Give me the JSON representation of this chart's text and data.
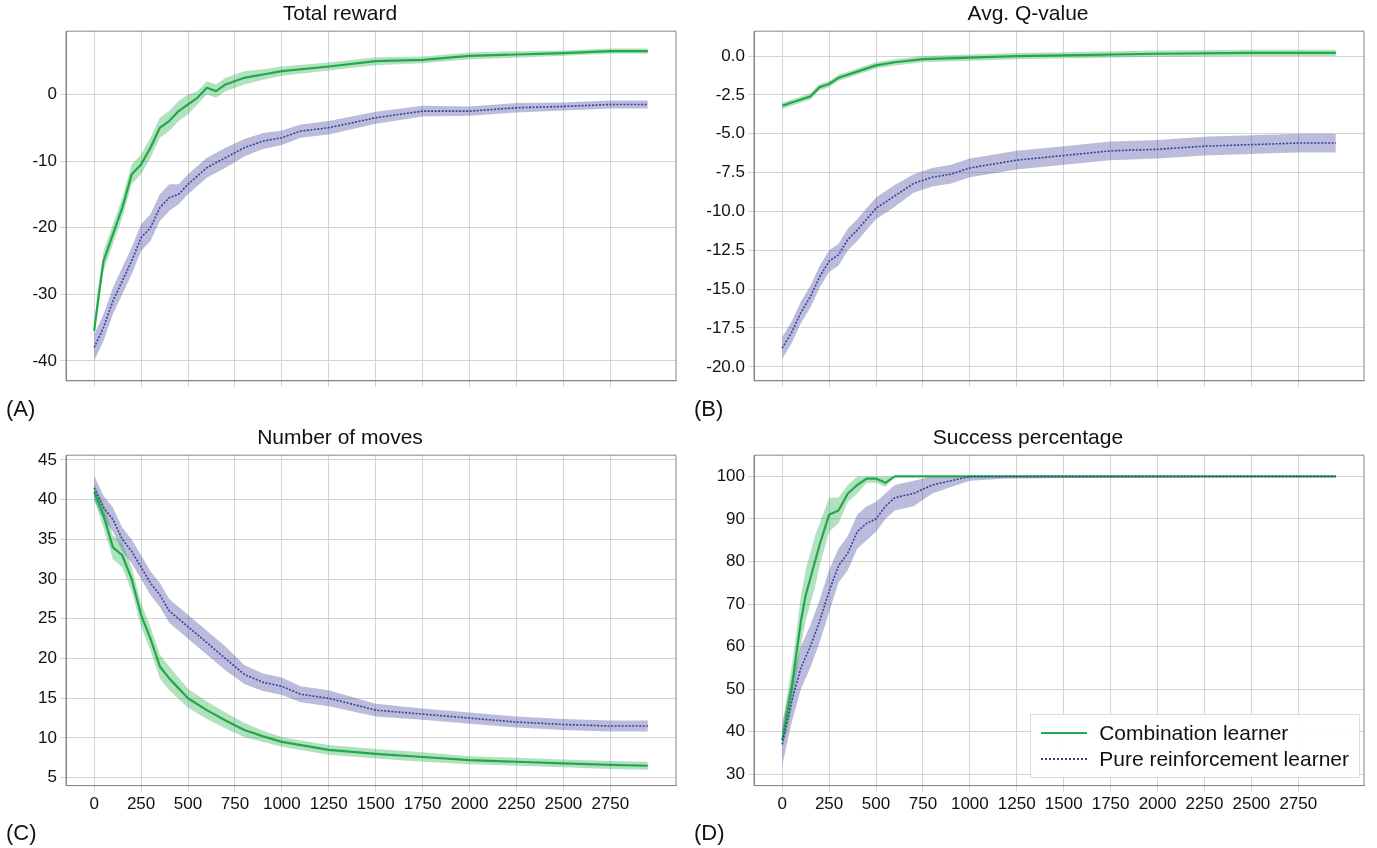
{
  "chart_data": [
    {
      "type": "line",
      "title": "Total reward",
      "annotations": [
        "(A)"
      ],
      "xlim": [
        -150,
        3100
      ],
      "ylim": [
        -43,
        9.5
      ],
      "xticks": [
        {
          "value": 0,
          "label": null
        },
        {
          "value": 250,
          "label": null
        },
        {
          "value": 500,
          "label": null
        },
        {
          "value": 750,
          "label": null
        },
        {
          "value": 1000,
          "label": null
        },
        {
          "value": 1250,
          "label": null
        },
        {
          "value": 1500,
          "label": null
        },
        {
          "value": 1750,
          "label": null
        },
        {
          "value": 2000,
          "label": null
        },
        {
          "value": 2250,
          "label": null
        },
        {
          "value": 2500,
          "label": null
        },
        {
          "value": 2750,
          "label": null
        }
      ],
      "yticks": [
        -40,
        -30,
        -20,
        -10,
        0
      ],
      "tick_labels": "y",
      "grid": true,
      "legend": false,
      "marker": "none",
      "series": [
        {
          "color": "#22a84a",
          "line_style": "solid",
          "x": [
            0,
            25,
            50,
            75,
            100,
            150,
            200,
            250,
            300,
            350,
            400,
            450,
            500,
            550,
            600,
            650,
            700,
            800,
            900,
            1000,
            1250,
            1500,
            1750,
            2000,
            2250,
            2500,
            2750,
            2950
          ],
          "values": [
            -35.5,
            -30,
            -25,
            -23,
            -21,
            -17,
            -12,
            -10.5,
            -8,
            -5,
            -4,
            -2.5,
            -1.5,
            -0.5,
            1,
            0.5,
            1.5,
            2.5,
            3,
            3.5,
            4.2,
            5,
            5.2,
            5.8,
            6,
            6.2,
            6.5,
            6.5
          ],
          "lower": [
            -36.5,
            -31.5,
            -26.5,
            -24.5,
            -22.5,
            -18.5,
            -13.5,
            -12,
            -9.5,
            -6.5,
            -5.5,
            -4,
            -3,
            -1.5,
            0,
            -0.5,
            0.5,
            1.5,
            2.2,
            2.8,
            3.6,
            4.4,
            4.7,
            5.3,
            5.5,
            5.8,
            6.1,
            6.1
          ],
          "upper": [
            -34.5,
            -28.5,
            -23.5,
            -21.5,
            -19.5,
            -15.5,
            -10.5,
            -9,
            -6.5,
            -3.5,
            -2.5,
            -1,
            0,
            0.5,
            2,
            1.5,
            2.5,
            3.5,
            3.8,
            4.2,
            4.8,
            5.6,
            5.7,
            6.3,
            6.5,
            6.6,
            6.9,
            6.9
          ]
        },
        {
          "color": "#3b3f9c",
          "line_style": "dotted",
          "x": [
            0,
            50,
            100,
            150,
            200,
            250,
            300,
            350,
            400,
            450,
            500,
            600,
            700,
            800,
            900,
            1000,
            1100,
            1250,
            1500,
            1750,
            2000,
            2250,
            2500,
            2750,
            2950
          ],
          "values": [
            -38,
            -35,
            -31,
            -28,
            -25,
            -21.5,
            -20,
            -17,
            -15.5,
            -15,
            -13.5,
            -11,
            -9.5,
            -8,
            -7,
            -6.5,
            -5.5,
            -5,
            -3.5,
            -2.5,
            -2.5,
            -2,
            -1.8,
            -1.5,
            -1.5
          ],
          "lower": [
            -40,
            -37,
            -33,
            -30,
            -27,
            -23.5,
            -22,
            -19,
            -17.5,
            -16.5,
            -15,
            -12.5,
            -11,
            -9.3,
            -8.2,
            -7.6,
            -6.5,
            -6,
            -4.4,
            -3.3,
            -3.2,
            -2.7,
            -2.4,
            -2.1,
            -2.1
          ],
          "upper": [
            -36,
            -33,
            -29,
            -26,
            -23,
            -19.5,
            -18,
            -15,
            -13.5,
            -13.5,
            -12,
            -9.5,
            -8,
            -6.7,
            -5.8,
            -5.4,
            -4.5,
            -4,
            -2.6,
            -1.7,
            -1.8,
            -1.3,
            -1.2,
            -0.9,
            -0.9
          ]
        }
      ]
    },
    {
      "type": "line",
      "title": "Avg. Q-value",
      "annotations": [
        "(B)"
      ],
      "xlim": [
        -150,
        3100
      ],
      "ylim": [
        -20.9,
        1.6
      ],
      "xticks": [
        {
          "value": 0,
          "label": null
        },
        {
          "value": 250,
          "label": null
        },
        {
          "value": 500,
          "label": null
        },
        {
          "value": 750,
          "label": null
        },
        {
          "value": 1000,
          "label": null
        },
        {
          "value": 1250,
          "label": null
        },
        {
          "value": 1500,
          "label": null
        },
        {
          "value": 1750,
          "label": null
        },
        {
          "value": 2000,
          "label": null
        },
        {
          "value": 2250,
          "label": null
        },
        {
          "value": 2500,
          "label": null
        },
        {
          "value": 2750,
          "label": null
        }
      ],
      "yticks": [
        {
          "value": -20,
          "label": "-20.0"
        },
        -17.5,
        {
          "value": -15,
          "label": "-15.0"
        },
        -12.5,
        {
          "value": -10,
          "label": "-10.0"
        },
        -7.5,
        {
          "value": -5,
          "label": "-5.0"
        },
        -2.5,
        {
          "value": 0,
          "label": "0.0"
        }
      ],
      "tick_labels": "y",
      "grid": true,
      "legend": false,
      "marker": "none",
      "series": [
        {
          "color": "#22a84a",
          "line_style": "solid",
          "x": [
            0,
            100,
            150,
            200,
            250,
            300,
            400,
            500,
            600,
            750,
            1000,
            1250,
            1500,
            2000,
            2500,
            2950
          ],
          "values": [
            -3.2,
            -2.8,
            -2.6,
            -2,
            -1.8,
            -1.4,
            -1,
            -0.6,
            -0.4,
            -0.2,
            -0.1,
            0,
            0.05,
            0.15,
            0.2,
            0.2
          ],
          "lower": [
            -3.4,
            -3,
            -2.8,
            -2.2,
            -2,
            -1.6,
            -1.2,
            -0.8,
            -0.6,
            -0.4,
            -0.3,
            -0.2,
            -0.15,
            -0.05,
            0,
            0
          ],
          "upper": [
            -3,
            -2.6,
            -2.4,
            -1.8,
            -1.6,
            -1.2,
            -0.8,
            -0.4,
            -0.2,
            0,
            0.1,
            0.2,
            0.25,
            0.35,
            0.4,
            0.4
          ]
        },
        {
          "color": "#3b3f9c",
          "line_style": "dotted",
          "x": [
            0,
            50,
            100,
            150,
            200,
            250,
            300,
            350,
            400,
            450,
            500,
            600,
            700,
            800,
            900,
            1000,
            1250,
            1500,
            1750,
            2000,
            2250,
            2500,
            2750,
            2950
          ],
          "values": [
            -18.8,
            -17.8,
            -16.5,
            -15.5,
            -14.2,
            -13.2,
            -12.8,
            -11.8,
            -11.2,
            -10.5,
            -9.8,
            -9,
            -8.2,
            -7.8,
            -7.6,
            -7.2,
            -6.7,
            -6.4,
            -6.1,
            -6,
            -5.8,
            -5.7,
            -5.6,
            -5.6
          ],
          "lower": [
            -19.5,
            -18.5,
            -17.2,
            -16.2,
            -14.9,
            -13.9,
            -13.5,
            -12.5,
            -11.9,
            -11.2,
            -10.5,
            -9.7,
            -8.8,
            -8.4,
            -8.2,
            -7.8,
            -7.3,
            -7,
            -6.7,
            -6.6,
            -6.4,
            -6.3,
            -6.2,
            -6.2
          ],
          "upper": [
            -18.1,
            -17.1,
            -15.8,
            -14.8,
            -13.5,
            -12.5,
            -12.1,
            -11.1,
            -10.5,
            -9.8,
            -9.1,
            -8.3,
            -7.6,
            -7.2,
            -7,
            -6.6,
            -6.1,
            -5.8,
            -5.5,
            -5.4,
            -5.2,
            -5.1,
            -5,
            -5
          ]
        }
      ]
    },
    {
      "type": "line",
      "title": "Number of moves",
      "annotations": [
        "(C)"
      ],
      "xlim": [
        -150,
        3100
      ],
      "ylim": [
        4,
        45.6
      ],
      "xticks": [
        0,
        250,
        500,
        750,
        1000,
        1250,
        1500,
        1750,
        2000,
        2250,
        2500,
        2750
      ],
      "yticks": [
        5,
        10,
        15,
        20,
        25,
        30,
        35,
        40,
        45
      ],
      "grid": true,
      "legend": false,
      "marker": "none",
      "series": [
        {
          "color": "#22a84a",
          "line_style": "solid",
          "x": [
            0,
            50,
            100,
            150,
            200,
            250,
            300,
            350,
            400,
            500,
            600,
            700,
            800,
            900,
            1000,
            1250,
            1500,
            1750,
            2000,
            2250,
            2500,
            2750,
            2950
          ],
          "values": [
            41,
            38,
            34,
            33,
            30,
            25.5,
            22.5,
            19,
            17.5,
            15,
            13.5,
            12.2,
            11,
            10.2,
            9.5,
            8.5,
            8,
            7.6,
            7.2,
            7,
            6.8,
            6.6,
            6.5
          ],
          "lower": [
            40,
            36.5,
            32.5,
            31.5,
            28.5,
            24,
            21,
            17.5,
            16,
            13.8,
            12.4,
            11.2,
            10.1,
            9.5,
            8.9,
            7.9,
            7.4,
            7,
            6.7,
            6.5,
            6.3,
            6.1,
            6
          ],
          "upper": [
            42,
            39.5,
            35.5,
            34.5,
            31.5,
            27,
            24,
            20.5,
            19,
            16.2,
            14.6,
            13.2,
            11.9,
            10.9,
            10.1,
            9.1,
            8.6,
            8.2,
            7.7,
            7.5,
            7.3,
            7.1,
            7
          ]
        },
        {
          "color": "#3b3f9c",
          "line_style": "dotted",
          "x": [
            0,
            50,
            100,
            150,
            200,
            250,
            300,
            350,
            400,
            500,
            600,
            700,
            800,
            900,
            1000,
            1100,
            1250,
            1500,
            1750,
            2000,
            2250,
            2500,
            2750,
            2950
          ],
          "values": [
            41.5,
            39,
            37.5,
            35,
            33.5,
            31.5,
            29.5,
            28,
            26,
            24,
            22,
            20,
            18,
            17,
            16.5,
            15.5,
            15,
            13.5,
            13,
            12.5,
            12,
            11.7,
            11.5,
            11.5
          ],
          "lower": [
            40,
            37.5,
            36,
            33.5,
            32,
            30,
            28,
            26.5,
            24.5,
            22.5,
            20.5,
            18.5,
            16.8,
            15.9,
            15.4,
            14.5,
            14,
            12.7,
            12.3,
            11.8,
            11.3,
            11,
            10.8,
            10.8
          ],
          "upper": [
            43,
            40.5,
            39,
            36.5,
            35,
            33,
            31,
            29.5,
            27.5,
            25.5,
            23.5,
            21.5,
            19.2,
            18.1,
            17.6,
            16.5,
            16,
            14.3,
            13.7,
            13.2,
            12.7,
            12.4,
            12.2,
            12.2
          ]
        }
      ]
    },
    {
      "type": "line",
      "title": "Success percentage",
      "annotations": [
        "(D)"
      ],
      "xlim": [
        -150,
        3100
      ],
      "ylim": [
        27.3,
        105
      ],
      "xticks": [
        0,
        250,
        500,
        750,
        1000,
        1250,
        1500,
        1750,
        2000,
        2250,
        2500,
        2750
      ],
      "yticks": [
        30,
        40,
        50,
        60,
        70,
        80,
        90,
        100
      ],
      "grid": true,
      "legend": "bottom right",
      "marker": "none",
      "series": [
        {
          "name": "Combination learner",
          "color": "#22a84a",
          "line_style": "solid",
          "x": [
            0,
            25,
            50,
            75,
            100,
            125,
            150,
            175,
            200,
            250,
            300,
            350,
            400,
            450,
            500,
            550,
            600,
            1000,
            2950
          ],
          "values": [
            38,
            44,
            50,
            58,
            66,
            72,
            76,
            80,
            84,
            91,
            92,
            96,
            98,
            99.5,
            99.5,
            98.5,
            100,
            100,
            100
          ],
          "lower": [
            36,
            40,
            45,
            53,
            60,
            66,
            70,
            74,
            79,
            87,
            89,
            94,
            96,
            98.5,
            98.5,
            97.5,
            100,
            100,
            100
          ],
          "upper": [
            40,
            48,
            55,
            63,
            72,
            78,
            82,
            86,
            89,
            95,
            95,
            98,
            100,
            100,
            100,
            100,
            100,
            100,
            100
          ]
        },
        {
          "name": "Pure reinforcement learner",
          "color": "#3b3f9c",
          "line_style": "dotted",
          "x": [
            0,
            25,
            50,
            75,
            100,
            150,
            200,
            250,
            300,
            350,
            400,
            450,
            500,
            550,
            600,
            700,
            800,
            900,
            1000,
            1200,
            2950
          ],
          "values": [
            37,
            42,
            47,
            51,
            55,
            60,
            66,
            73,
            79,
            82,
            87,
            89,
            90,
            93,
            95,
            96,
            98,
            99,
            100,
            100,
            100
          ],
          "lower": [
            32,
            37,
            42,
            46,
            50,
            55,
            61,
            68,
            75,
            78,
            83,
            85,
            87,
            90,
            92,
            93,
            96,
            97.5,
            99,
            99.5,
            100
          ],
          "upper": [
            42,
            47,
            52,
            56,
            60,
            65,
            71,
            78,
            83,
            86,
            91,
            93,
            94,
            96,
            98,
            99,
            100,
            100,
            100,
            100,
            100
          ]
        }
      ]
    }
  ]
}
